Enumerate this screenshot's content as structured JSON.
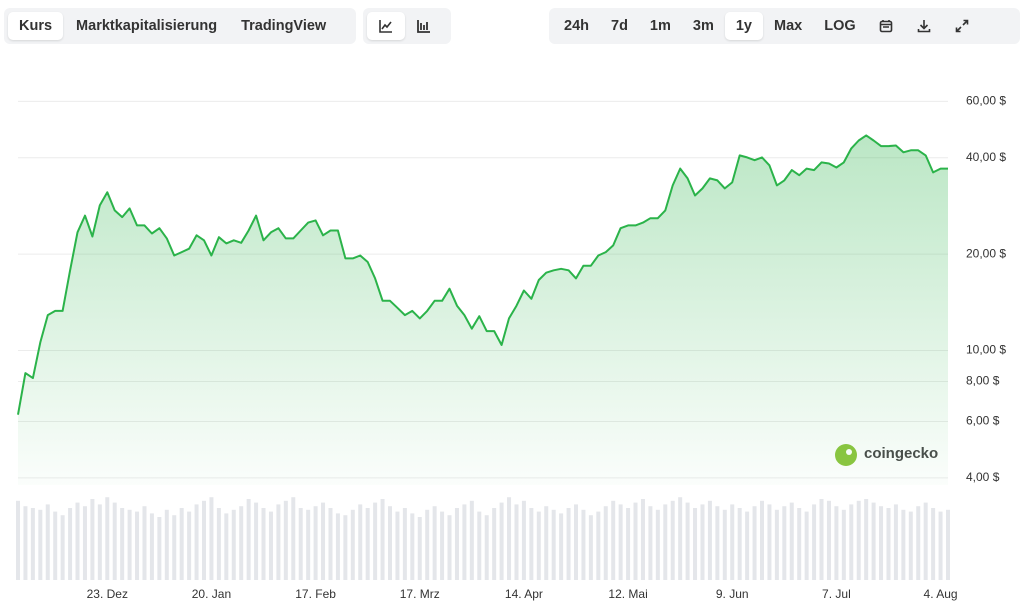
{
  "toolbar": {
    "views": [
      "Kurs",
      "Marktkapitalisierung",
      "TradingView"
    ],
    "ranges": [
      "24h",
      "7d",
      "1m",
      "3m",
      "1y",
      "Max",
      "LOG"
    ]
  },
  "watermark": "coingecko",
  "chart_data": {
    "type": "line",
    "log_scale": true,
    "grid": true,
    "color": "#2bb34a",
    "categories": [
      null,
      null,
      null,
      null,
      null,
      null,
      null,
      null,
      null,
      null,
      null,
      null,
      "23. Dez",
      null,
      null,
      null,
      null,
      null,
      null,
      null,
      null,
      null,
      null,
      null,
      null,
      null,
      "20. Jan",
      null,
      null,
      null,
      null,
      null,
      null,
      null,
      null,
      null,
      null,
      null,
      null,
      null,
      "17. Feb",
      null,
      null,
      null,
      null,
      null,
      null,
      null,
      null,
      null,
      null,
      null,
      null,
      null,
      "17. Mrz",
      null,
      null,
      null,
      null,
      null,
      null,
      null,
      null,
      null,
      null,
      null,
      null,
      null,
      "14. Apr",
      null,
      null,
      null,
      null,
      null,
      null,
      null,
      null,
      null,
      null,
      null,
      null,
      null,
      "12. Mai",
      null,
      null,
      null,
      null,
      null,
      null,
      null,
      null,
      null,
      null,
      null,
      null,
      null,
      "9. Jun",
      null,
      null,
      null,
      null,
      null,
      null,
      null,
      null,
      null,
      null,
      null,
      null,
      null,
      "7. Jul",
      null,
      null,
      null,
      null,
      null,
      null,
      null,
      null,
      null,
      null,
      null,
      null,
      null,
      "4. Aug",
      null
    ],
    "values": [
      6.3,
      8.5,
      8.2,
      10.6,
      12.9,
      13.3,
      13.3,
      17.8,
      23.4,
      26.4,
      22.7,
      28.4,
      31.2,
      27.4,
      26.1,
      27.8,
      24.6,
      24.6,
      23.2,
      24.1,
      22.4,
      19.8,
      20.3,
      20.8,
      22.9,
      22.1,
      19.8,
      22.6,
      21.6,
      22.1,
      21.7,
      23.7,
      26.4,
      22.1,
      23.4,
      24.1,
      22.4,
      22.4,
      23.7,
      25.1,
      25.5,
      22.9,
      23.7,
      23.7,
      19.4,
      19.4,
      19.8,
      18.9,
      16.8,
      14.3,
      14.3,
      13.6,
      12.9,
      13.3,
      12.6,
      13.3,
      14.3,
      14.3,
      15.6,
      13.8,
      12.9,
      11.7,
      12.8,
      11.5,
      11.5,
      10.4,
      12.6,
      13.8,
      15.4,
      14.5,
      16.6,
      17.5,
      17.8,
      18.0,
      17.8,
      16.8,
      18.4,
      18.4,
      19.8,
      20.3,
      21.3,
      24.1,
      24.6,
      24.6,
      25.1,
      25.9,
      25.9,
      27.4,
      32.8,
      37.0,
      34.5,
      30.5,
      32.1,
      34.5,
      34.0,
      32.1,
      33.5,
      40.7,
      40.1,
      39.3,
      40.1,
      37.9,
      32.8,
      34.0,
      36.6,
      35.3,
      37.0,
      36.6,
      38.7,
      38.4,
      37.3,
      38.7,
      42.8,
      45.3,
      47.0,
      45.3,
      43.5,
      43.5,
      43.7,
      41.6,
      42.2,
      42.2,
      40.7,
      36.0,
      37.0,
      37.0
    ],
    "ylim": [
      3.8,
      70
    ],
    "yticks": [
      {
        "value": 4,
        "label": "4,00 $"
      },
      {
        "value": 6,
        "label": "6,00 $"
      },
      {
        "value": 8,
        "label": "8,00 $"
      },
      {
        "value": 10,
        "label": "10,00 $"
      },
      {
        "value": 20,
        "label": "20,00 $"
      },
      {
        "value": 40,
        "label": "40,00 $"
      },
      {
        "value": 60,
        "label": "60,00 $"
      }
    ],
    "volume": {
      "color": "#e4e6ea",
      "lim": [
        0,
        100
      ],
      "values": [
        88,
        82,
        80,
        78,
        84,
        76,
        72,
        80,
        86,
        82,
        90,
        84,
        92,
        86,
        80,
        78,
        76,
        82,
        74,
        70,
        78,
        72,
        80,
        76,
        84,
        88,
        92,
        80,
        74,
        78,
        82,
        90,
        86,
        80,
        76,
        84,
        88,
        92,
        80,
        78,
        82,
        86,
        80,
        74,
        72,
        78,
        84,
        80,
        86,
        90,
        82,
        76,
        80,
        74,
        70,
        78,
        82,
        76,
        72,
        80,
        84,
        88,
        76,
        72,
        80,
        86,
        92,
        84,
        88,
        80,
        76,
        82,
        78,
        74,
        80,
        84,
        78,
        72,
        76,
        82,
        88,
        84,
        80,
        86,
        90,
        82,
        78,
        84,
        88,
        92,
        86,
        80,
        84,
        88,
        82,
        78,
        84,
        80,
        76,
        82,
        88,
        84,
        78,
        82,
        86,
        80,
        76,
        84,
        90,
        88,
        82,
        78,
        84,
        88,
        90,
        86,
        82,
        80,
        84,
        78,
        76,
        82,
        86,
        80,
        76,
        78
      ]
    }
  }
}
